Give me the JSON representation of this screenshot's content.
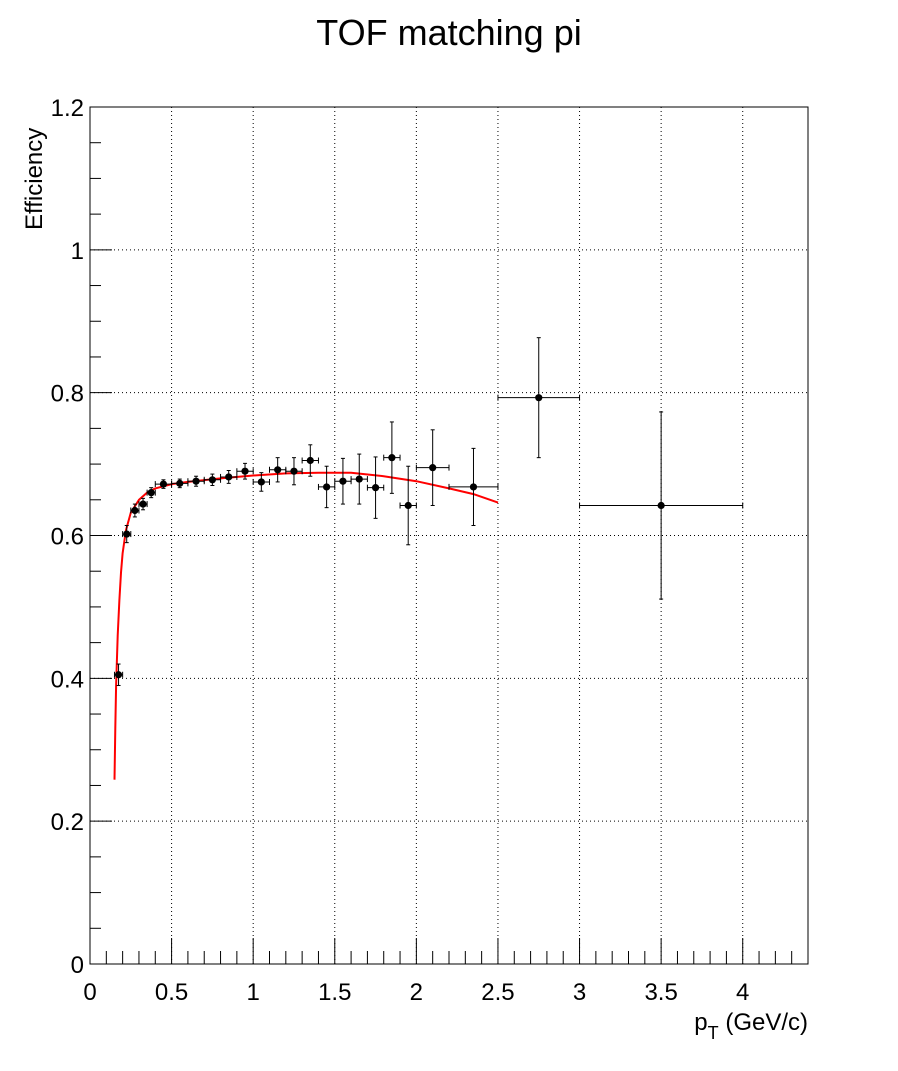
{
  "chart_data": {
    "type": "scatter",
    "title": "TOF matching pi",
    "xlabel_main": "p",
    "xlabel_sub": "T",
    "xlabel_rest": " (GeV/c)",
    "ylabel": "Efficiency",
    "xlim": [
      0,
      4.4
    ],
    "ylim": [
      0,
      1.2
    ],
    "x_ticks": [
      "0",
      "0.5",
      "1",
      "1.5",
      "2",
      "2.5",
      "3",
      "3.5",
      "4"
    ],
    "y_ticks": [
      "0",
      "0.2",
      "0.4",
      "0.6",
      "0.8",
      "1",
      "1.2"
    ],
    "grid": true,
    "marker_color": "#000000",
    "fit_color": "#ff0000",
    "points": [
      {
        "x": 0.175,
        "y": 0.405,
        "xerr": 0.025,
        "yerr": 0.015
      },
      {
        "x": 0.225,
        "y": 0.602,
        "xerr": 0.025,
        "yerr": 0.012
      },
      {
        "x": 0.275,
        "y": 0.635,
        "xerr": 0.025,
        "yerr": 0.009
      },
      {
        "x": 0.325,
        "y": 0.644,
        "xerr": 0.025,
        "yerr": 0.008
      },
      {
        "x": 0.375,
        "y": 0.66,
        "xerr": 0.025,
        "yerr": 0.007
      },
      {
        "x": 0.45,
        "y": 0.672,
        "xerr": 0.05,
        "yerr": 0.006
      },
      {
        "x": 0.55,
        "y": 0.673,
        "xerr": 0.05,
        "yerr": 0.006
      },
      {
        "x": 0.65,
        "y": 0.676,
        "xerr": 0.05,
        "yerr": 0.007
      },
      {
        "x": 0.75,
        "y": 0.678,
        "xerr": 0.05,
        "yerr": 0.008
      },
      {
        "x": 0.85,
        "y": 0.682,
        "xerr": 0.05,
        "yerr": 0.009
      },
      {
        "x": 0.95,
        "y": 0.69,
        "xerr": 0.05,
        "yerr": 0.011
      },
      {
        "x": 1.05,
        "y": 0.675,
        "xerr": 0.05,
        "yerr": 0.013
      },
      {
        "x": 1.15,
        "y": 0.692,
        "xerr": 0.05,
        "yerr": 0.017
      },
      {
        "x": 1.25,
        "y": 0.69,
        "xerr": 0.05,
        "yerr": 0.019
      },
      {
        "x": 1.35,
        "y": 0.705,
        "xerr": 0.05,
        "yerr": 0.022
      },
      {
        "x": 1.45,
        "y": 0.668,
        "xerr": 0.05,
        "yerr": 0.029
      },
      {
        "x": 1.55,
        "y": 0.676,
        "xerr": 0.05,
        "yerr": 0.032
      },
      {
        "x": 1.65,
        "y": 0.679,
        "xerr": 0.05,
        "yerr": 0.035
      },
      {
        "x": 1.75,
        "y": 0.667,
        "xerr": 0.05,
        "yerr": 0.043
      },
      {
        "x": 1.85,
        "y": 0.709,
        "xerr": 0.05,
        "yerr": 0.05
      },
      {
        "x": 1.95,
        "y": 0.642,
        "xerr": 0.05,
        "yerr": 0.055
      },
      {
        "x": 2.1,
        "y": 0.695,
        "xerr": 0.1,
        "yerr": 0.053
      },
      {
        "x": 2.35,
        "y": 0.668,
        "xerr": 0.15,
        "yerr": 0.054
      },
      {
        "x": 2.75,
        "y": 0.793,
        "xerr": 0.25,
        "yerr": 0.084
      },
      {
        "x": 3.5,
        "y": 0.642,
        "xerr": 0.5,
        "yerr": 0.131
      }
    ],
    "fit_curve": [
      [
        0.15,
        0.258
      ],
      [
        0.155,
        0.33
      ],
      [
        0.16,
        0.39
      ],
      [
        0.17,
        0.46
      ],
      [
        0.18,
        0.51
      ],
      [
        0.19,
        0.548
      ],
      [
        0.2,
        0.575
      ],
      [
        0.22,
        0.607
      ],
      [
        0.25,
        0.632
      ],
      [
        0.3,
        0.65
      ],
      [
        0.35,
        0.66
      ],
      [
        0.4,
        0.666
      ],
      [
        0.5,
        0.672
      ],
      [
        0.6,
        0.675
      ],
      [
        0.8,
        0.68
      ],
      [
        1.0,
        0.684
      ],
      [
        1.2,
        0.687
      ],
      [
        1.4,
        0.688
      ],
      [
        1.6,
        0.688
      ],
      [
        1.8,
        0.683
      ],
      [
        2.0,
        0.676
      ],
      [
        2.2,
        0.666
      ],
      [
        2.35,
        0.658
      ],
      [
        2.5,
        0.646
      ]
    ]
  }
}
